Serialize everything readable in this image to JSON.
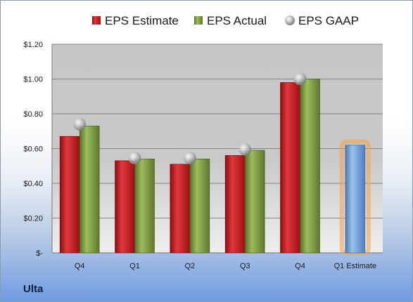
{
  "company": "Ulta",
  "chart_data": {
    "type": "bar",
    "categories": [
      "Q4",
      "Q1",
      "Q2",
      "Q3",
      "Q4",
      "Q1 Estimate"
    ],
    "series": [
      {
        "name": "EPS Estimate",
        "color": "#c0171c",
        "values": [
          0.67,
          0.53,
          0.51,
          0.56,
          0.98,
          null
        ]
      },
      {
        "name": "EPS Actual",
        "color": "#76963a",
        "values": [
          0.73,
          0.54,
          0.54,
          0.59,
          1.0,
          null
        ]
      },
      {
        "name": "EPS GAAP",
        "color": "#c8c8c8",
        "marker": "sphere",
        "values": [
          0.74,
          0.545,
          0.545,
          0.595,
          1.0,
          null
        ]
      },
      {
        "name": "",
        "color": "#6e9fd6",
        "highlight": "#f5a144",
        "values": [
          null,
          null,
          null,
          null,
          null,
          0.62
        ]
      }
    ],
    "yticks": [
      "$1.20",
      "$1.00",
      "$0.80",
      "$0.60",
      "$0.40",
      "$0.20",
      "$-"
    ],
    "ylim": [
      0,
      1.2
    ],
    "legend_position": "top",
    "grid": true
  }
}
